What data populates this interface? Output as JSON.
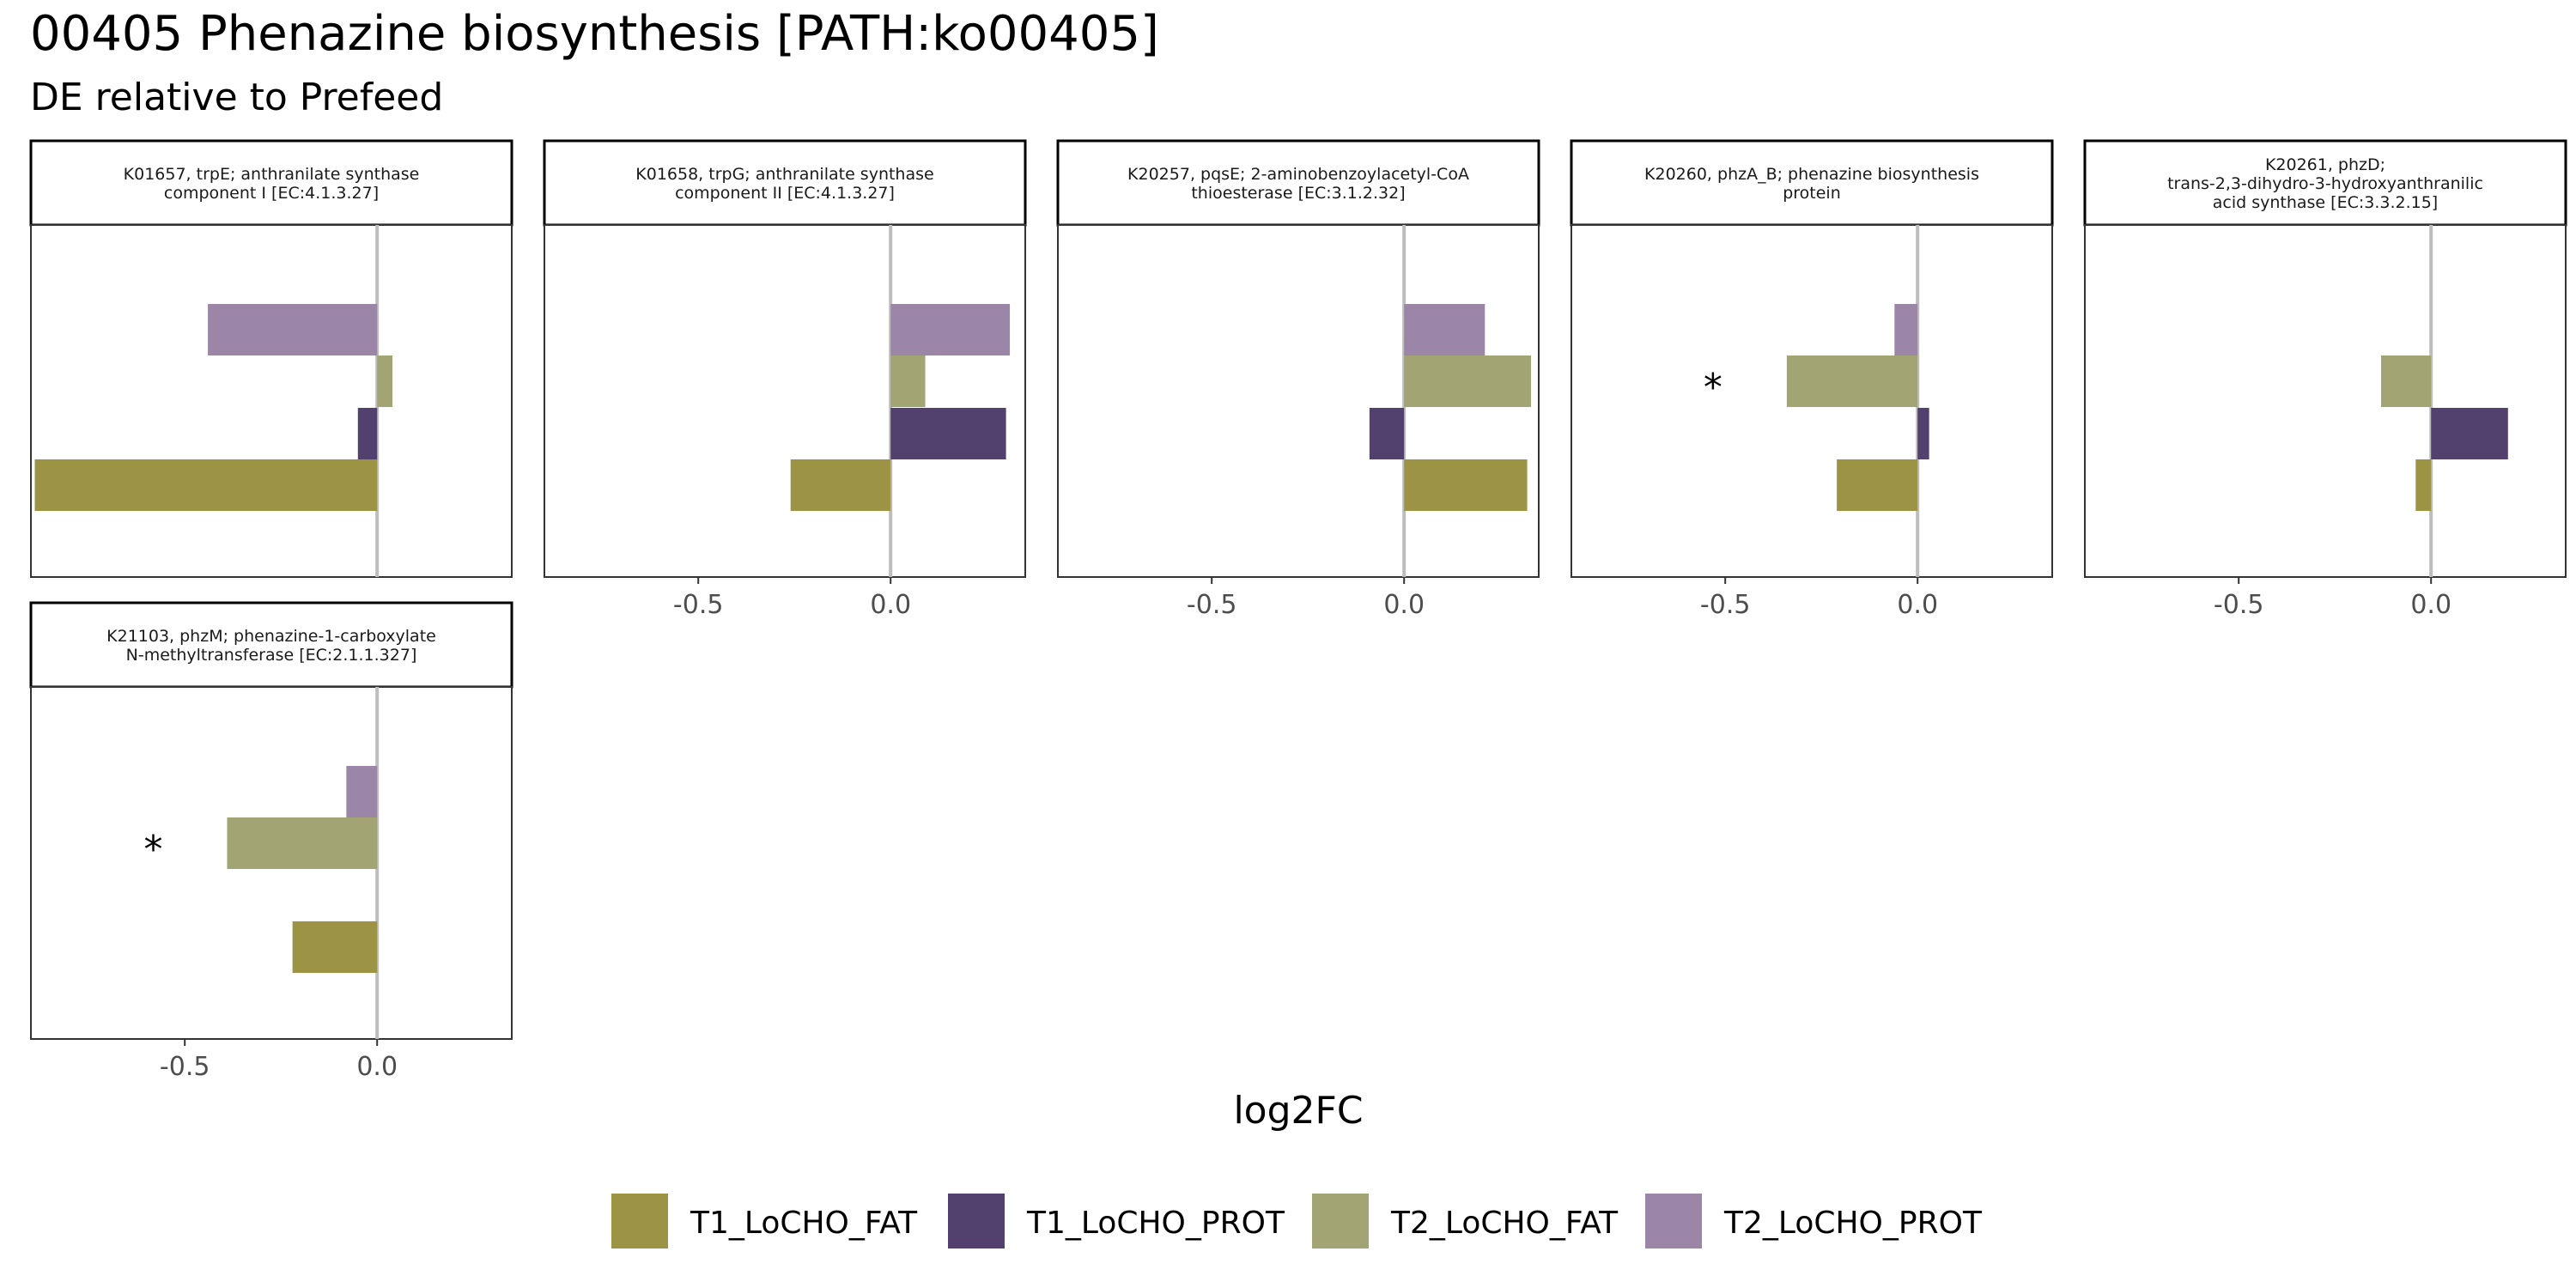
{
  "title": "00405 Phenazine biosynthesis [PATH:ko00405]",
  "subtitle": "DE relative to Prefeed",
  "chart_data": {
    "type": "bar",
    "orientation": "horizontal",
    "facet": "wrap",
    "x_axis_label": "log2FC",
    "xlim": [
      -0.9,
      0.35
    ],
    "x_ticks": [
      -0.5,
      0.0
    ],
    "x_tick_labels": [
      "-0.5",
      "0.0"
    ],
    "zero_line": true,
    "grid": false,
    "legend_position": "bottom",
    "series": [
      {
        "name": "T1_LoCHO_FAT",
        "color": "#9C9345"
      },
      {
        "name": "T1_LoCHO_PROT",
        "color": "#52406E"
      },
      {
        "name": "T2_LoCHO_FAT",
        "color": "#A2A473"
      },
      {
        "name": "T2_LoCHO_PROT",
        "color": "#9C86A8"
      }
    ],
    "panels": [
      {
        "strip": [
          "K01657, trpE; anthranilate synthase",
          "component I [EC:4.1.3.27]"
        ],
        "values": {
          "T1_LoCHO_FAT": -0.89,
          "T1_LoCHO_PROT": -0.05,
          "T2_LoCHO_FAT": 0.04,
          "T2_LoCHO_PROT": -0.44
        },
        "significant": [],
        "show_x_axis": false
      },
      {
        "strip": [
          "K01658, trpG; anthranilate synthase",
          "component II [EC:4.1.3.27]"
        ],
        "values": {
          "T1_LoCHO_FAT": -0.26,
          "T1_LoCHO_PROT": 0.3,
          "T2_LoCHO_FAT": 0.09,
          "T2_LoCHO_PROT": 0.31
        },
        "significant": [],
        "show_x_axis": true
      },
      {
        "strip": [
          "K20257, pqsE; 2-aminobenzoylacetyl-CoA",
          "thioesterase [EC:3.1.2.32]"
        ],
        "values": {
          "T1_LoCHO_FAT": 0.32,
          "T1_LoCHO_PROT": -0.09,
          "T2_LoCHO_FAT": 0.33,
          "T2_LoCHO_PROT": 0.21
        },
        "significant": [],
        "show_x_axis": true
      },
      {
        "strip": [
          "K20260, phzA_B; phenazine biosynthesis",
          "protein"
        ],
        "values": {
          "T1_LoCHO_FAT": -0.21,
          "T1_LoCHO_PROT": 0.03,
          "T2_LoCHO_FAT": -0.34,
          "T2_LoCHO_PROT": -0.06
        },
        "significant": [
          "T2_LoCHO_FAT"
        ],
        "show_x_axis": true
      },
      {
        "strip": [
          "K20261, phzD;",
          "trans-2,3-dihydro-3-hydroxyanthranilic",
          "acid synthase [EC:3.3.2.15]"
        ],
        "values": {
          "T1_LoCHO_FAT": -0.04,
          "T1_LoCHO_PROT": 0.2,
          "T2_LoCHO_FAT": -0.13,
          "T2_LoCHO_PROT": 0.0
        },
        "significant": [],
        "show_x_axis": true
      },
      {
        "strip": [
          "K21103, phzM; phenazine-1-carboxylate",
          "N-methyltransferase [EC:2.1.1.327]"
        ],
        "values": {
          "T1_LoCHO_FAT": -0.22,
          "T1_LoCHO_PROT": 0.0,
          "T2_LoCHO_FAT": -0.39,
          "T2_LoCHO_PROT": -0.08
        },
        "significant": [
          "T2_LoCHO_FAT"
        ],
        "show_x_axis": true
      }
    ],
    "significance_marker": "*"
  }
}
